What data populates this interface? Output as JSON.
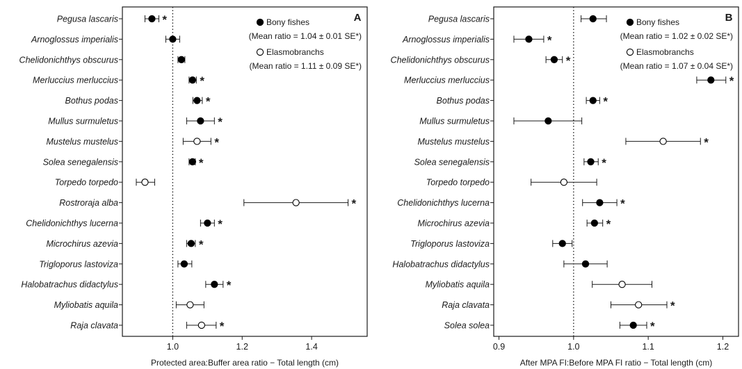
{
  "chart_data": [
    {
      "type": "scatter",
      "panel_label": "A",
      "xlabel": "Protected area:Buffer area ratio − Total length (cm)",
      "xlim": [
        0.855,
        1.56
      ],
      "xticks": [
        1.0,
        1.2,
        1.4
      ],
      "xtick_labels": [
        "1.0",
        "1.2",
        "1.4"
      ],
      "reference_line": 1.0,
      "legend": [
        {
          "marker": "filled",
          "label": "Bony fishes",
          "detail": "(Mean ratio = 1.04 ± 0.01 SE*)"
        },
        {
          "marker": "open",
          "label": "Elasmobranchs",
          "detail": "(Mean ratio = 1.11 ± 0.09 SE*)"
        }
      ],
      "legend_position": "top-right",
      "points": [
        {
          "species": "Pegusa lascaris",
          "value": 0.94,
          "lo": 0.92,
          "hi": 0.96,
          "group": "bony",
          "significant": true
        },
        {
          "species": "Arnoglossus imperialis",
          "value": 1.0,
          "lo": 0.98,
          "hi": 1.02,
          "group": "bony",
          "significant": false
        },
        {
          "species": "Chelidonichthys obscurus",
          "value": 1.025,
          "lo": 1.015,
          "hi": 1.035,
          "group": "bony",
          "significant": false
        },
        {
          "species": "Merluccius merluccius",
          "value": 1.057,
          "lo": 1.047,
          "hi": 1.068,
          "group": "bony",
          "significant": true
        },
        {
          "species": "Bothus podas",
          "value": 1.07,
          "lo": 1.058,
          "hi": 1.085,
          "group": "bony",
          "significant": true
        },
        {
          "species": "Mullus surmuletus",
          "value": 1.08,
          "lo": 1.04,
          "hi": 1.12,
          "group": "bony",
          "significant": true
        },
        {
          "species": "Mustelus mustelus",
          "value": 1.07,
          "lo": 1.03,
          "hi": 1.11,
          "group": "elasmo",
          "significant": true
        },
        {
          "species": "Solea senegalensis",
          "value": 1.057,
          "lo": 1.047,
          "hi": 1.065,
          "group": "bony",
          "significant": true
        },
        {
          "species": "Torpedo torpedo",
          "value": 0.92,
          "lo": 0.895,
          "hi": 0.948,
          "group": "elasmo",
          "significant": false
        },
        {
          "species": "Rostroraja alba",
          "value": 1.355,
          "lo": 1.205,
          "hi": 1.505,
          "group": "elasmo",
          "significant": true
        },
        {
          "species": "Chelidonichthys lucerna",
          "value": 1.1,
          "lo": 1.08,
          "hi": 1.12,
          "group": "bony",
          "significant": true
        },
        {
          "species": "Microchirus azevia",
          "value": 1.053,
          "lo": 1.04,
          "hi": 1.065,
          "group": "bony",
          "significant": true
        },
        {
          "species": "Trigloporus lastoviza",
          "value": 1.033,
          "lo": 1.015,
          "hi": 1.055,
          "group": "bony",
          "significant": false
        },
        {
          "species": "Halobatrachus didactylus",
          "value": 1.12,
          "lo": 1.095,
          "hi": 1.145,
          "group": "bony",
          "significant": true
        },
        {
          "species": "Myliobatis aquila",
          "value": 1.05,
          "lo": 1.01,
          "hi": 1.09,
          "group": "elasmo",
          "significant": false
        },
        {
          "species": "Raja clavata",
          "value": 1.083,
          "lo": 1.04,
          "hi": 1.125,
          "group": "elasmo",
          "significant": true
        }
      ]
    },
    {
      "type": "scatter",
      "panel_label": "B",
      "xlabel": "After MPA FI:Before MPA FI ratio − Total length (cm)",
      "xlim": [
        0.893,
        1.221
      ],
      "xticks": [
        0.9,
        1.0,
        1.1,
        1.2
      ],
      "xtick_labels": [
        "0.9",
        "1.0",
        "1.1",
        "1.2"
      ],
      "reference_line": 1.0,
      "legend": [
        {
          "marker": "filled",
          "label": "Bony fishes",
          "detail": "(Mean ratio = 1.02 ± 0.02 SE*)"
        },
        {
          "marker": "open",
          "label": "Elasmobranchs",
          "detail": "(Mean ratio = 1.07 ± 0.04 SE*)"
        }
      ],
      "legend_position": "top-right",
      "points": [
        {
          "species": "Pegusa lascaris",
          "value": 1.026,
          "lo": 1.01,
          "hi": 1.044,
          "group": "bony",
          "significant": false
        },
        {
          "species": "Arnoglossus imperialis",
          "value": 0.94,
          "lo": 0.92,
          "hi": 0.96,
          "group": "bony",
          "significant": true
        },
        {
          "species": "Chelidonichthys obscurus",
          "value": 0.974,
          "lo": 0.963,
          "hi": 0.985,
          "group": "bony",
          "significant": true
        },
        {
          "species": "Merluccius merluccius",
          "value": 1.184,
          "lo": 1.165,
          "hi": 1.204,
          "group": "bony",
          "significant": true
        },
        {
          "species": "Bothus podas",
          "value": 1.026,
          "lo": 1.017,
          "hi": 1.035,
          "group": "bony",
          "significant": true
        },
        {
          "species": "Mullus surmuletus",
          "value": 0.966,
          "lo": 0.92,
          "hi": 1.011,
          "group": "bony",
          "significant": false
        },
        {
          "species": "Mustelus mustelus",
          "value": 1.12,
          "lo": 1.07,
          "hi": 1.17,
          "group": "elasmo",
          "significant": true
        },
        {
          "species": "Solea senegalensis",
          "value": 1.023,
          "lo": 1.014,
          "hi": 1.033,
          "group": "bony",
          "significant": true
        },
        {
          "species": "Torpedo torpedo",
          "value": 0.987,
          "lo": 0.943,
          "hi": 1.031,
          "group": "elasmo",
          "significant": false
        },
        {
          "species": "Chelidonichthys lucerna",
          "value": 1.035,
          "lo": 1.012,
          "hi": 1.058,
          "group": "bony",
          "significant": true
        },
        {
          "species": "Microchirus azevia",
          "value": 1.028,
          "lo": 1.018,
          "hi": 1.039,
          "group": "bony",
          "significant": true
        },
        {
          "species": "Trigloporus lastoviza",
          "value": 0.985,
          "lo": 0.972,
          "hi": 0.998,
          "group": "bony",
          "significant": false
        },
        {
          "species": "Halobatrachus didactylus",
          "value": 1.016,
          "lo": 0.987,
          "hi": 1.045,
          "group": "bony",
          "significant": false
        },
        {
          "species": "Myliobatis aquila",
          "value": 1.065,
          "lo": 1.025,
          "hi": 1.105,
          "group": "elasmo",
          "significant": false
        },
        {
          "species": "Raja clavata",
          "value": 1.087,
          "lo": 1.05,
          "hi": 1.125,
          "group": "elasmo",
          "significant": true
        },
        {
          "species": "Solea solea",
          "value": 1.08,
          "lo": 1.062,
          "hi": 1.098,
          "group": "bony",
          "significant": true
        }
      ]
    }
  ]
}
